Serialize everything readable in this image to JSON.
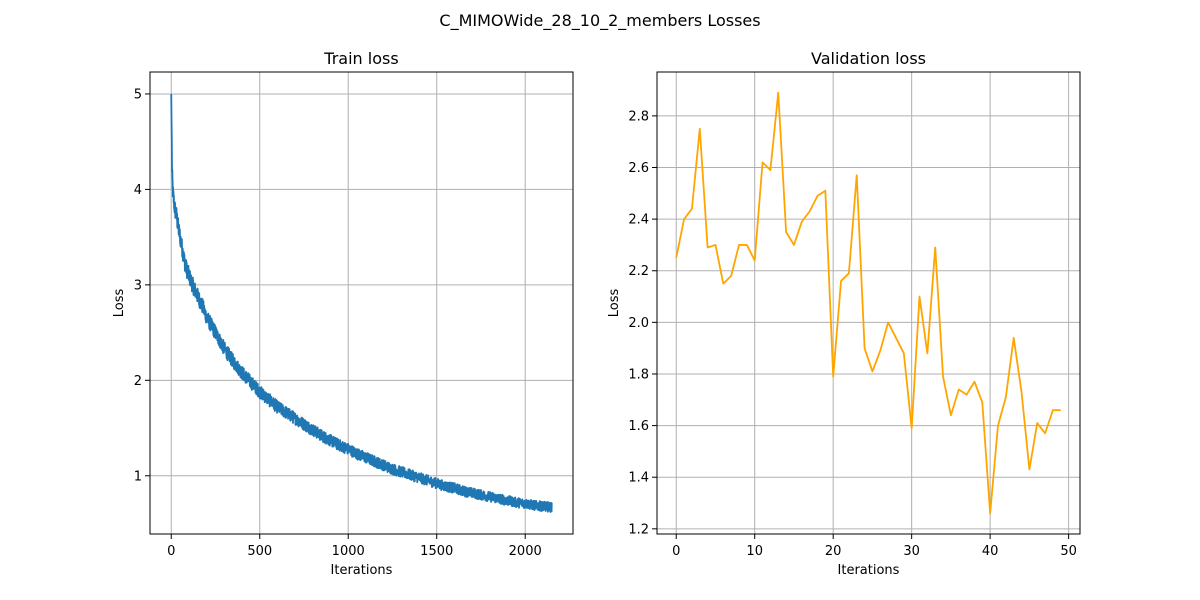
{
  "figure": {
    "suptitle": "C_MIMOWide_28_10_2_members Losses"
  },
  "colors": {
    "train": "#1f77b4",
    "validation": "#ffa500"
  },
  "chart_data": [
    {
      "type": "line",
      "title": "Train loss",
      "xlabel": "Iterations",
      "ylabel": "Loss",
      "xlim": [
        -120,
        2270
      ],
      "ylim": [
        0.39,
        5.23
      ],
      "xticks": [
        0,
        500,
        1000,
        1500,
        2000
      ],
      "yticks": [
        1,
        2,
        3,
        4,
        5
      ],
      "grid": true,
      "series": [
        {
          "name": "",
          "color": "#1f77b4",
          "points": [
            [
              0,
              5.0
            ],
            [
              5,
              4.15
            ],
            [
              10,
              3.95
            ],
            [
              20,
              3.8
            ],
            [
              30,
              3.72
            ],
            [
              40,
              3.6
            ],
            [
              50,
              3.5
            ],
            [
              60,
              3.4
            ],
            [
              70,
              3.3
            ],
            [
              80,
              3.2
            ],
            [
              100,
              3.1
            ],
            [
              120,
              3.0
            ],
            [
              150,
              2.88
            ],
            [
              180,
              2.76
            ],
            [
              200,
              2.66
            ],
            [
              250,
              2.5
            ],
            [
              300,
              2.33
            ],
            [
              350,
              2.2
            ],
            [
              400,
              2.08
            ],
            [
              450,
              1.98
            ],
            [
              500,
              1.88
            ],
            [
              550,
              1.8
            ],
            [
              600,
              1.72
            ],
            [
              650,
              1.66
            ],
            [
              700,
              1.6
            ],
            [
              750,
              1.54
            ],
            [
              800,
              1.48
            ],
            [
              850,
              1.42
            ],
            [
              900,
              1.37
            ],
            [
              950,
              1.32
            ],
            [
              1000,
              1.28
            ],
            [
              1050,
              1.23
            ],
            [
              1100,
              1.19
            ],
            [
              1150,
              1.15
            ],
            [
              1200,
              1.11
            ],
            [
              1250,
              1.07
            ],
            [
              1300,
              1.04
            ],
            [
              1350,
              1.01
            ],
            [
              1400,
              0.98
            ],
            [
              1450,
              0.95
            ],
            [
              1500,
              0.92
            ],
            [
              1550,
              0.89
            ],
            [
              1600,
              0.87
            ],
            [
              1650,
              0.84
            ],
            [
              1700,
              0.82
            ],
            [
              1750,
              0.8
            ],
            [
              1800,
              0.78
            ],
            [
              1850,
              0.76
            ],
            [
              1900,
              0.74
            ],
            [
              1950,
              0.72
            ],
            [
              2000,
              0.71
            ],
            [
              2050,
              0.69
            ],
            [
              2100,
              0.68
            ],
            [
              2150,
              0.67
            ]
          ],
          "noise_amplitude": 0.07
        }
      ]
    },
    {
      "type": "line",
      "title": "Validation loss",
      "xlabel": "Iterations",
      "ylabel": "Loss",
      "xlim": [
        -2.45,
        51.45
      ],
      "ylim": [
        1.18,
        2.97
      ],
      "xticks": [
        0,
        10,
        20,
        30,
        40,
        50
      ],
      "yticks": [
        1.2,
        1.4,
        1.6,
        1.8,
        2.0,
        2.2,
        2.4,
        2.6,
        2.8
      ],
      "ytick_labels": [
        "1.2",
        "1.4",
        "1.6",
        "1.8",
        "2.0",
        "2.2",
        "2.4",
        "2.6",
        "2.8"
      ],
      "grid": true,
      "series": [
        {
          "name": "",
          "color": "#ffa500",
          "x": [
            0,
            1,
            2,
            3,
            4,
            5,
            6,
            7,
            8,
            9,
            10,
            11,
            12,
            13,
            14,
            15,
            16,
            17,
            18,
            19,
            20,
            21,
            22,
            23,
            24,
            25,
            26,
            27,
            28,
            29,
            30,
            31,
            32,
            33,
            34,
            35,
            36,
            37,
            38,
            39,
            40,
            41,
            42,
            43,
            44,
            45,
            46,
            47,
            48,
            49
          ],
          "y": [
            2.25,
            2.4,
            2.44,
            2.75,
            2.29,
            2.3,
            2.15,
            2.18,
            2.3,
            2.3,
            2.24,
            2.62,
            2.59,
            2.89,
            2.35,
            2.3,
            2.39,
            2.43,
            2.49,
            2.51,
            1.79,
            2.16,
            2.19,
            2.57,
            1.9,
            1.81,
            1.89,
            2.0,
            1.94,
            1.88,
            1.59,
            2.1,
            1.88,
            2.29,
            1.79,
            1.64,
            1.74,
            1.72,
            1.77,
            1.69,
            1.26,
            1.6,
            1.71,
            1.94,
            1.73,
            1.43,
            1.61,
            1.57,
            1.66,
            1.66
          ]
        }
      ]
    }
  ]
}
